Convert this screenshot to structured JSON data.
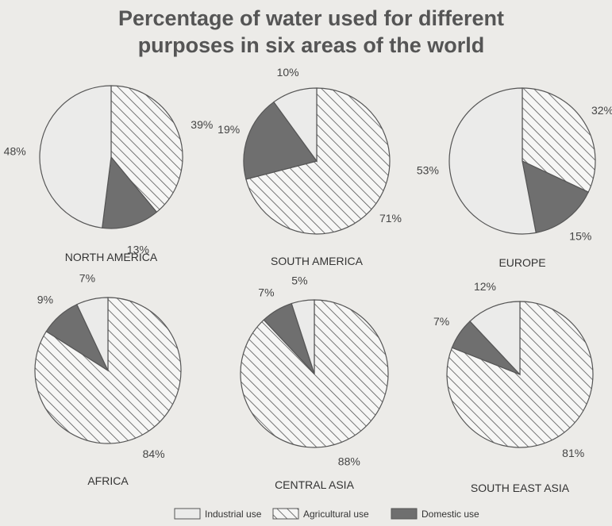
{
  "chart_data": {
    "type": "pie",
    "title": "Percentage of water used for different purposes in six areas of the world",
    "title_lines": [
      "Percentage of water used for different",
      "purposes in six areas of the world"
    ],
    "legend": [
      {
        "key": "industrial",
        "label": "Industrial use",
        "fill": "#ebebea"
      },
      {
        "key": "agricultural",
        "label": "Agricultural use",
        "fill": "hatch"
      },
      {
        "key": "domestic",
        "label": "Domestic use",
        "fill": "#6f6f6f"
      }
    ],
    "colors": {
      "industrial": "#ebebea",
      "domestic": "#6f6f6f",
      "hatch_line": "#555555",
      "outline": "#555555"
    },
    "charts": [
      {
        "region": "NORTH AMERICA",
        "slices": [
          {
            "key": "agricultural",
            "value": 39,
            "label": "39%"
          },
          {
            "key": "domestic",
            "value": 13,
            "label": "13%"
          },
          {
            "key": "industrial",
            "value": 48,
            "label": "48%"
          }
        ]
      },
      {
        "region": "SOUTH AMERICA",
        "slices": [
          {
            "key": "agricultural",
            "value": 71,
            "label": "71%"
          },
          {
            "key": "domestic",
            "value": 19,
            "label": "19%"
          },
          {
            "key": "industrial",
            "value": 10,
            "label": "10%"
          }
        ]
      },
      {
        "region": "EUROPE",
        "slices": [
          {
            "key": "agricultural",
            "value": 32,
            "label": "32%"
          },
          {
            "key": "domestic",
            "value": 15,
            "label": "15%"
          },
          {
            "key": "industrial",
            "value": 53,
            "label": "53%"
          }
        ]
      },
      {
        "region": "AFRICA",
        "slices": [
          {
            "key": "agricultural",
            "value": 84,
            "label": "84%"
          },
          {
            "key": "domestic",
            "value": 9,
            "label": "9%"
          },
          {
            "key": "industrial",
            "value": 7,
            "label": "7%"
          }
        ]
      },
      {
        "region": "CENTRAL ASIA",
        "slices": [
          {
            "key": "agricultural",
            "value": 88,
            "label": "88%"
          },
          {
            "key": "domestic",
            "value": 7,
            "label": "7%"
          },
          {
            "key": "industrial",
            "value": 5,
            "label": "5%"
          }
        ]
      },
      {
        "region": "SOUTH EAST ASIA",
        "slices": [
          {
            "key": "agricultural",
            "value": 81,
            "label": "81%"
          },
          {
            "key": "domestic",
            "value": 7,
            "label": "7%"
          },
          {
            "key": "industrial",
            "value": 12,
            "label": "12%"
          }
        ]
      }
    ]
  }
}
